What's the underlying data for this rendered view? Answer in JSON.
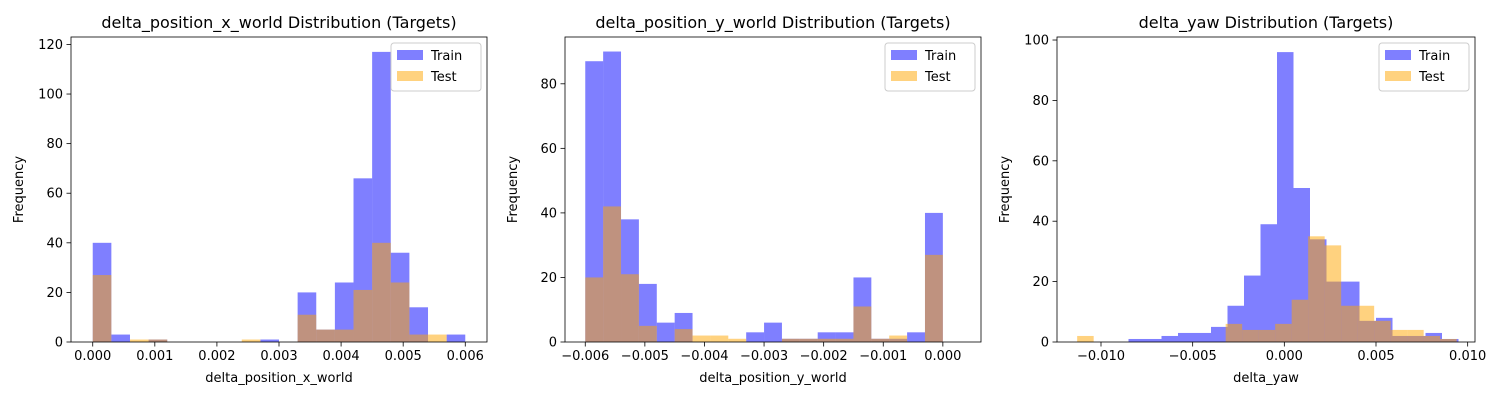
{
  "colors": {
    "train": "#0000ff",
    "test": "#ffa500",
    "train_alpha": 0.5,
    "test_alpha": 0.5
  },
  "chart_data": [
    {
      "type": "histogram",
      "title": "delta_position_x_world Distribution (Targets)",
      "xlabel": "delta_position_x_world",
      "ylabel": "Frequency",
      "xlim": [
        -0.00035,
        0.00635
      ],
      "ylim": [
        0,
        123
      ],
      "xticks": [
        0.0,
        0.001,
        0.002,
        0.003,
        0.004,
        0.005,
        0.006
      ],
      "xtick_labels": [
        "0.000",
        "0.001",
        "0.002",
        "0.003",
        "0.004",
        "0.005",
        "0.006"
      ],
      "yticks": [
        0,
        20,
        40,
        60,
        80,
        100,
        120
      ],
      "ytick_labels": [
        "0",
        "20",
        "40",
        "60",
        "80",
        "100",
        "120"
      ],
      "legend": {
        "position": "top-right",
        "entries": [
          "Train",
          "Test"
        ]
      },
      "series": [
        {
          "name": "Train",
          "bin_start": 0.0,
          "bin_width": 0.0003,
          "counts": [
            40,
            3,
            0,
            1,
            0,
            0,
            0,
            0,
            0,
            1,
            0,
            20,
            5,
            24,
            66,
            117,
            36,
            14,
            0,
            3
          ]
        },
        {
          "name": "Test",
          "bin_start": 0.0,
          "bin_width": 0.0003,
          "counts": [
            27,
            0,
            1,
            1,
            0,
            0,
            0,
            0,
            1,
            0,
            0,
            11,
            5,
            5,
            21,
            40,
            24,
            3,
            3,
            0
          ]
        }
      ]
    },
    {
      "type": "histogram",
      "title": "delta_position_y_world Distribution (Targets)",
      "xlabel": "delta_position_y_world",
      "ylabel": "Frequency",
      "xlim": [
        -0.00634,
        0.00064
      ],
      "ylim": [
        0,
        94.5
      ],
      "xticks": [
        -0.006,
        -0.005,
        -0.004,
        -0.003,
        -0.002,
        -0.001,
        0.0
      ],
      "xtick_labels": [
        "−0.006",
        "−0.005",
        "−0.004",
        "−0.003",
        "−0.002",
        "−0.001",
        "0.000"
      ],
      "yticks": [
        0,
        20,
        40,
        60,
        80
      ],
      "ytick_labels": [
        "0",
        "20",
        "40",
        "60",
        "80"
      ],
      "legend": {
        "position": "top-right",
        "entries": [
          "Train",
          "Test"
        ]
      },
      "series": [
        {
          "name": "Train",
          "bin_start": -0.006,
          "bin_width": 0.0003,
          "counts": [
            87,
            90,
            38,
            18,
            6,
            9,
            0,
            0,
            0,
            3,
            6,
            1,
            1,
            3,
            3,
            20,
            1,
            1,
            3,
            40
          ]
        },
        {
          "name": "Test",
          "bin_start": -0.006,
          "bin_width": 0.0003,
          "counts": [
            20,
            42,
            21,
            5,
            0,
            4,
            2,
            2,
            1,
            0,
            0,
            1,
            1,
            1,
            1,
            11,
            1,
            2,
            0,
            27
          ]
        }
      ]
    },
    {
      "type": "histogram",
      "title": "delta_yaw Distribution (Targets)",
      "xlabel": "delta_yaw",
      "ylabel": "Frequency",
      "xlim": [
        -0.0124,
        0.0104
      ],
      "ylim": [
        0,
        101
      ],
      "xticks": [
        -0.01,
        -0.005,
        0.0,
        0.005,
        0.01
      ],
      "xtick_labels": [
        "−0.010",
        "−0.005",
        "0.000",
        "0.005",
        "0.010"
      ],
      "yticks": [
        0,
        20,
        40,
        60,
        80,
        100
      ],
      "ytick_labels": [
        "0",
        "20",
        "40",
        "60",
        "80",
        "100"
      ],
      "legend": {
        "position": "top-right",
        "entries": [
          "Train",
          "Test"
        ]
      },
      "series": [
        {
          "name": "Train",
          "bin_start": -0.0085,
          "bin_width": 0.0009,
          "counts": [
            1,
            1,
            2,
            3,
            3,
            5,
            12,
            22,
            39,
            96,
            51,
            34,
            20,
            20,
            7,
            8,
            2,
            2,
            3,
            1
          ]
        },
        {
          "name": "Test",
          "bin_start": -0.0113,
          "bin_width": 0.0009,
          "counts": [
            2,
            0,
            0,
            0,
            0,
            0,
            0,
            0,
            0,
            6,
            4,
            4,
            6,
            14,
            35,
            32,
            12,
            12,
            7,
            4,
            4,
            2,
            1
          ]
        }
      ]
    }
  ]
}
